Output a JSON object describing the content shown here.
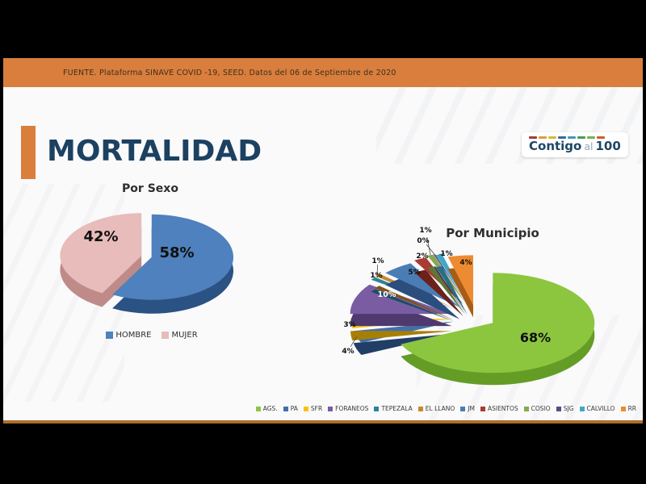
{
  "topbar": {
    "source_text": "FUENTE. Plataforma SINAVE COVID -19, SEED. Datos del 06 de Septiembre de 2020"
  },
  "slide": {
    "title": "MORTALIDAD",
    "accent_color": "#D97E3C",
    "logo": {
      "contigo": "Contigo",
      "al": "al",
      "hundred": "100",
      "dash_colors": [
        "#A23B3B",
        "#E09B3A",
        "#D9B73A",
        "#33689E",
        "#4A93B8",
        "#429E55",
        "#76B24A",
        "#CE5A32"
      ]
    }
  },
  "chart_data": [
    {
      "type": "pie",
      "title": "Por Sexo",
      "labels": [
        "HOMBRE",
        "MUJER"
      ],
      "values": [
        58,
        42
      ],
      "data_labels": [
        "58%",
        "42%"
      ],
      "colors": [
        "#4E81BD",
        "#E7BCBA"
      ],
      "side_colors": [
        "#2A5283",
        "#BE8B89"
      ],
      "data_label_colors": [
        "#101010",
        "#101010"
      ],
      "legend_position": "bottom-center",
      "style": "3d-exploded"
    },
    {
      "type": "pie",
      "title": "Por Municipio",
      "labels": [
        "AGS.",
        "PA",
        "SFR",
        "FORANEOS",
        "TEPEZALA",
        "EL LLANO",
        "JM",
        "ASIENTOS",
        "COSIO",
        "SJG",
        "CALVILLO",
        "RR"
      ],
      "values": [
        68,
        4,
        3,
        10,
        1,
        1,
        5,
        2,
        1,
        0,
        1,
        4
      ],
      "data_labels": [
        "68%",
        "4%",
        "3%",
        "10%",
        "1%",
        "1%",
        "5%",
        "2%",
        "1%",
        "0%",
        "1%",
        "4%"
      ],
      "colors": [
        "#8CC63F",
        "#4470A6",
        "#FDC10A",
        "#7A5CA3",
        "#2E8398",
        "#C8882E",
        "#4B7DB5",
        "#A93B32",
        "#85A94F",
        "#5C4A85",
        "#40A8C5",
        "#EC8B31"
      ],
      "side_colors": [
        "#649D26",
        "#203E66",
        "#A87F05",
        "#4E3A6F",
        "#184F5D",
        "#7D5517",
        "#2B4E7E",
        "#6C211B",
        "#5B7733",
        "#3A2E57",
        "#256F88",
        "#A85C15"
      ],
      "data_label_colors": [
        "#101010",
        "#101010",
        "#101010",
        "#FFFFFF",
        "#101010",
        "#101010",
        "#101010",
        "#101010",
        "#101010",
        "#101010",
        "#101010",
        "#1A1208"
      ],
      "legend_position": "bottom-right",
      "style": "3d-exploded"
    }
  ]
}
